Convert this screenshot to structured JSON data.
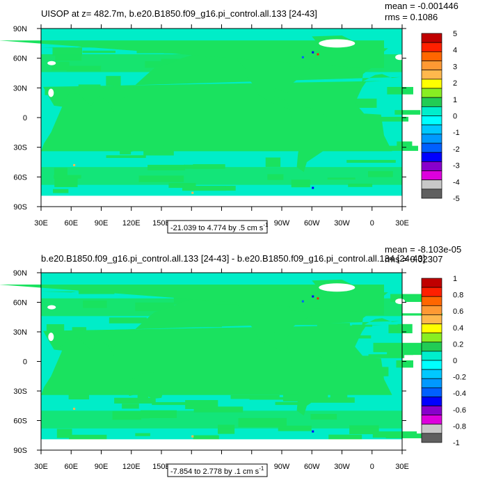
{
  "chart_data": [
    {
      "type": "heatmap",
      "title": "UISOP at z= 482.7m, b.e20.B1850.f09_g16.pi_control.all.133 [24-43]",
      "stats": {
        "mean": "mean = -0.001446",
        "rms": "rms = 0.1086"
      },
      "range_label": "-21.039 to 4.774 by .5 cm s",
      "range_unit_exp": "-1",
      "x_ticks": [
        "30E",
        "60E",
        "90E",
        "120E",
        "150E",
        "180",
        "150W",
        "120W",
        "90W",
        "60W",
        "30W",
        "0",
        "30E"
      ],
      "y_ticks": [
        "90N",
        "60N",
        "30N",
        "0",
        "30S",
        "60S",
        "90S"
      ],
      "colorbar_labels": [
        "5",
        "4",
        "3",
        "2",
        "1",
        "0",
        "-1",
        "-2",
        "-3",
        "-4",
        "-5"
      ],
      "ocean_value_range": [
        -1,
        0
      ],
      "secondary_band_range": [
        0,
        1
      ],
      "notes": "Ocean field mostly between -1 and 0; mid-latitude and Southern Ocean patches between 0 and 1; isolated extremes near 180 at 75S and near 60W at 70S and in the North Atlantic"
    },
    {
      "type": "heatmap",
      "title": "b.e20.B1850.f09_g16.pi_control.all.133 [24-43] - b.e20.B1850.f09_g16.pi_control.all.134 [24-43]",
      "stats": {
        "mean": "mean = -8.103e-05",
        "rms": "rms = 0.02307"
      },
      "range_label": "-7.854 to 2.778 by .1 cm s",
      "range_unit_exp": "-1",
      "x_ticks": [
        "30E",
        "60E",
        "90E",
        "120E",
        "150E",
        "180",
        "150W",
        "120W",
        "90W",
        "60W",
        "30W",
        "0",
        "30E"
      ],
      "y_ticks": [
        "90N",
        "60N",
        "30N",
        "0",
        "30S",
        "60S",
        "90S"
      ],
      "colorbar_labels": [
        "1",
        "0.8",
        "0.6",
        "0.4",
        "0.2",
        "0",
        "-0.2",
        "-0.4",
        "-0.6",
        "-0.8",
        "-1"
      ],
      "ocean_value_range": [
        -0.2,
        0
      ],
      "secondary_band_range": [
        0,
        0.2
      ],
      "notes": "Difference field mostly between -0.2 and 0 with scattered 0 to 0.2 patches; small extremes in North Atlantic near 60W"
    }
  ],
  "colors": {
    "palette_top_to_bottom": [
      "#c00000",
      "#ff2000",
      "#ff6600",
      "#ff9933",
      "#ffb84d",
      "#ffff00",
      "#88ee22",
      "#22cc55",
      "#00eecc",
      "#00ffff",
      "#00c8ff",
      "#0099ff",
      "#0060ff",
      "#0000ff",
      "#8800cc",
      "#dd00dd",
      "#c8c8c8",
      "#606060"
    ],
    "ocean_main": "#00edc8",
    "ocean_band": "#1ae25f",
    "land": "#ffffff"
  }
}
